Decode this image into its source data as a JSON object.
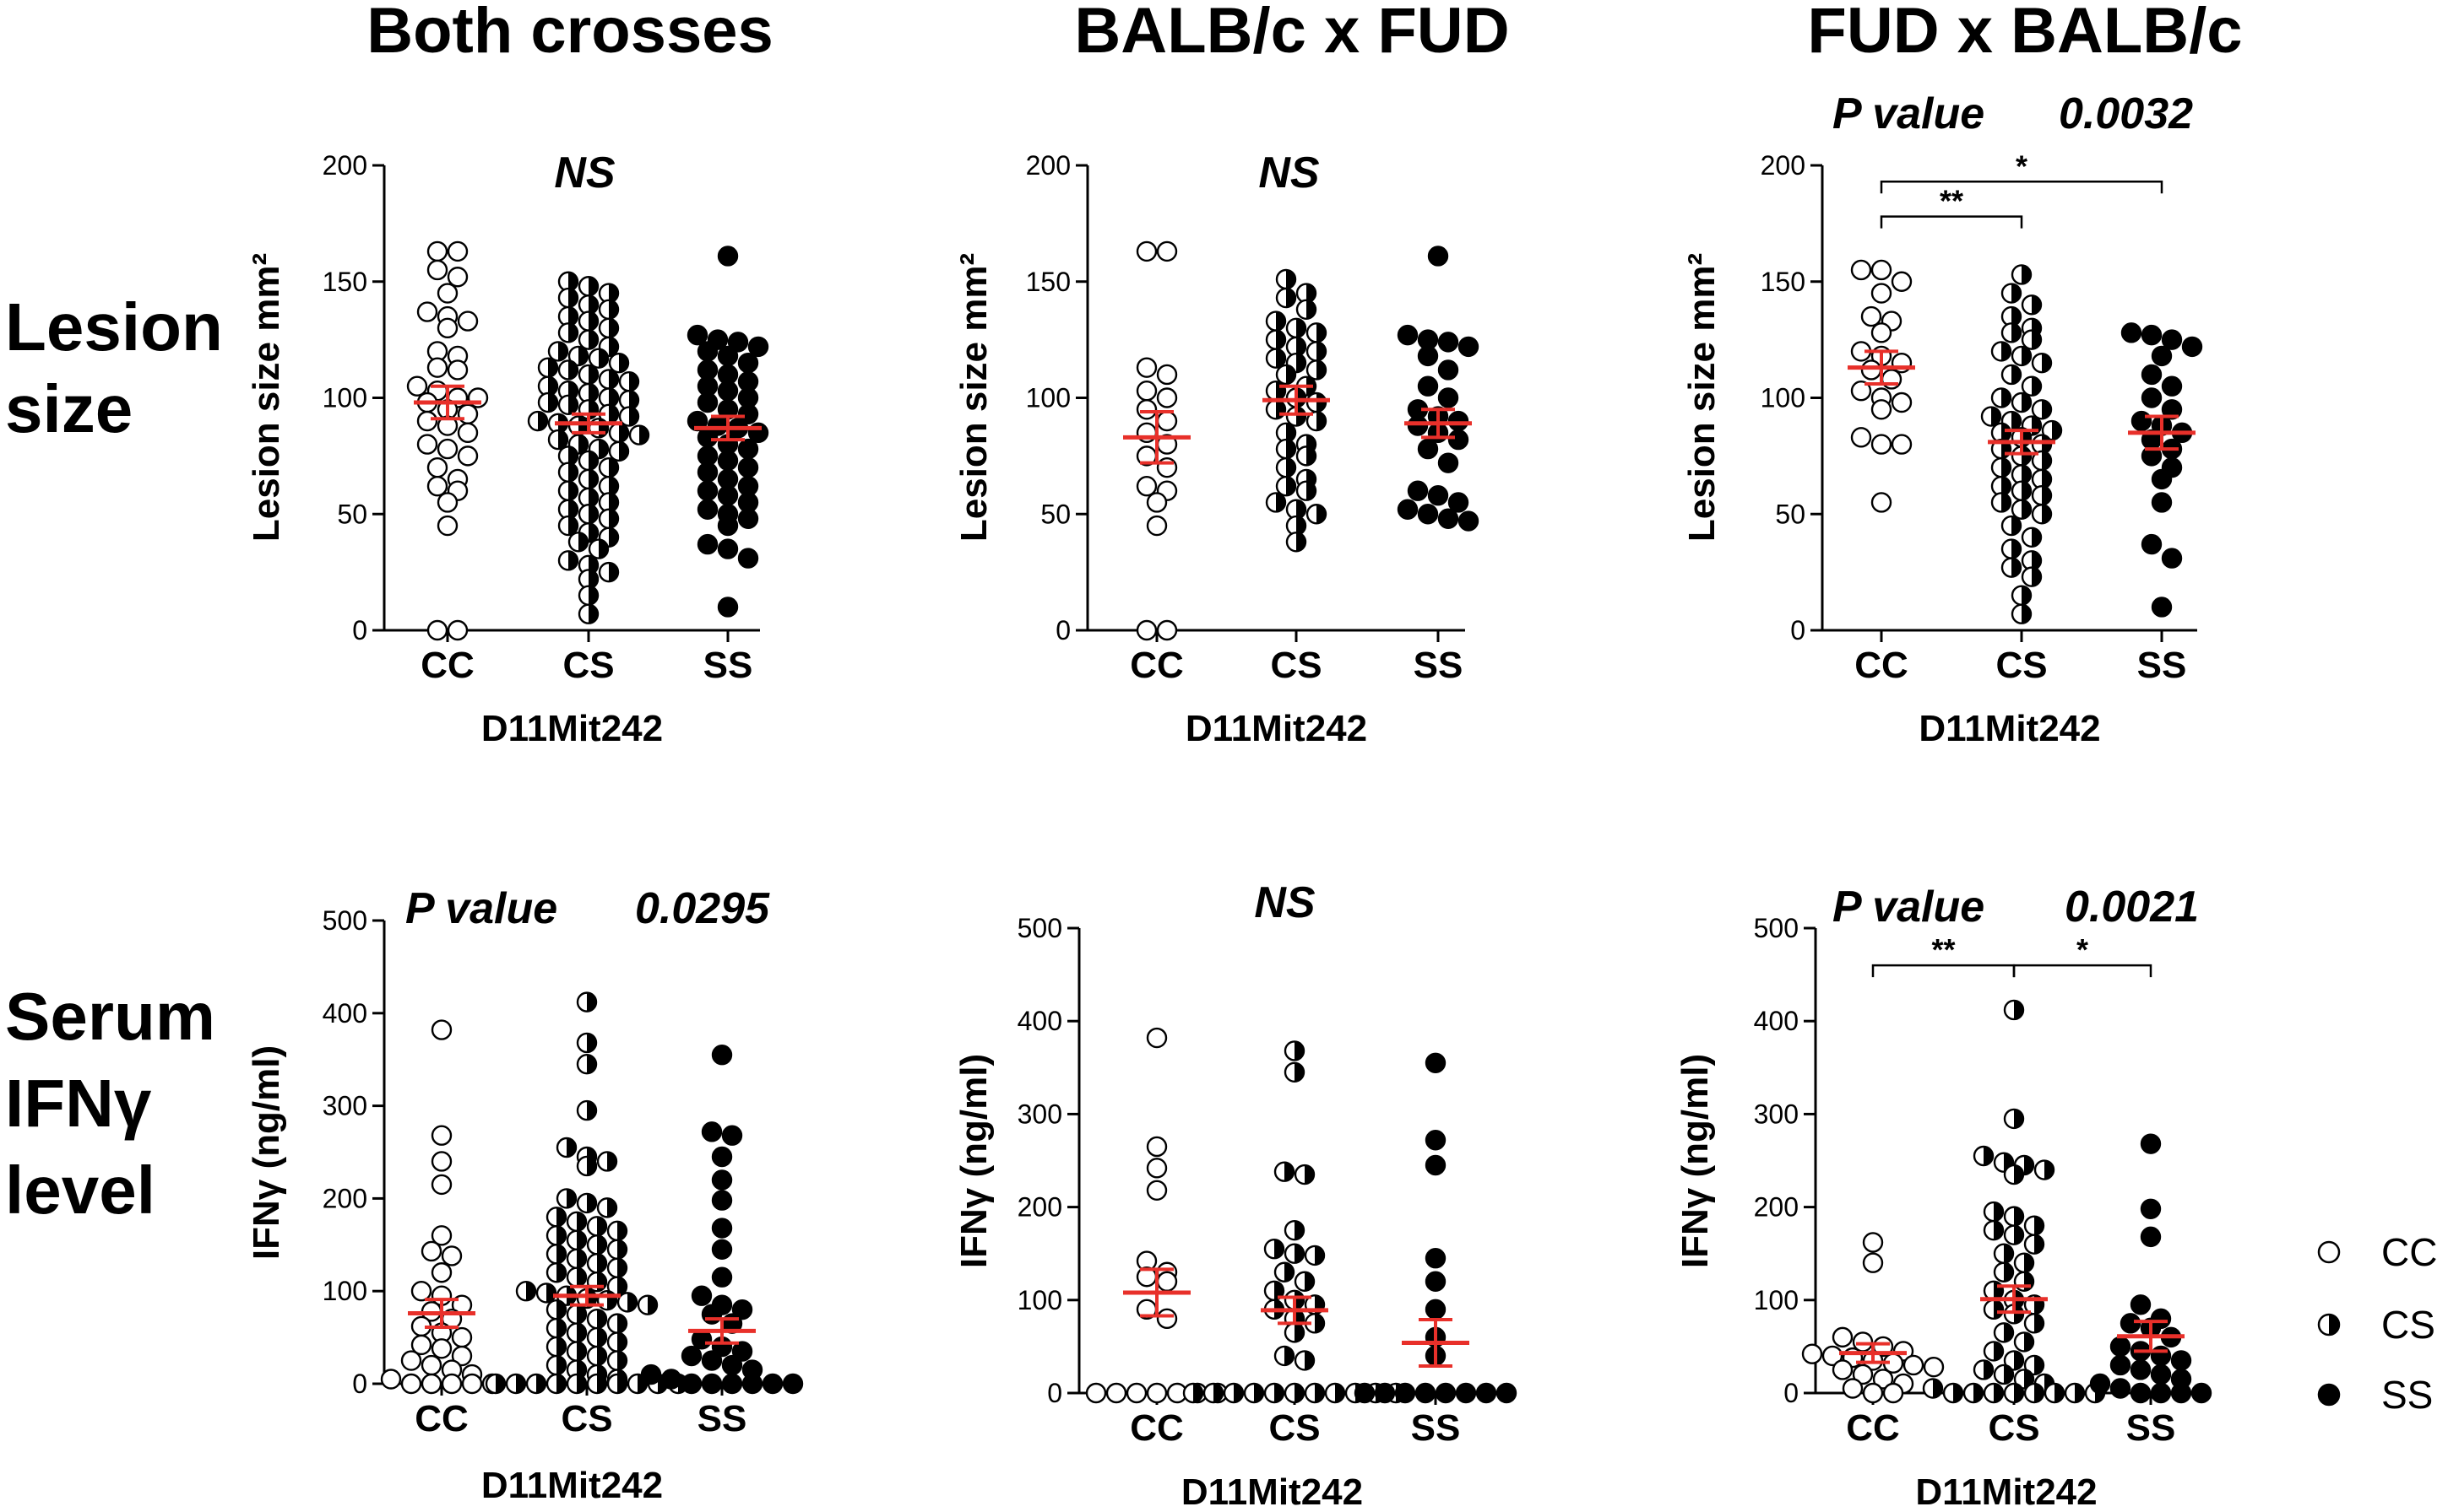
{
  "column_titles": [
    "Both crosses",
    "BALB/c x FUD",
    "FUD x BALB/c"
  ],
  "row_labels": [
    [
      "Lesion",
      "size"
    ],
    [
      "Serum",
      "IFNγ",
      "level"
    ]
  ],
  "colors": {
    "mean_sem": "#e8302a",
    "marker": "#000000"
  },
  "legend": {
    "entries": [
      {
        "label": "CC",
        "fill": "open"
      },
      {
        "label": "CS",
        "fill": "half"
      },
      {
        "label": "SS",
        "fill": "filled"
      }
    ]
  },
  "chart_data": [
    {
      "id": "lesion-both",
      "type": "scatter",
      "title": "NS",
      "p_value": "",
      "xlabel": "D11Mit242",
      "ylabel": "Lesion size mm²",
      "ylim": [
        0,
        200
      ],
      "yticks": [
        0,
        50,
        100,
        150,
        200
      ],
      "categories": [
        "CC",
        "CS",
        "SS"
      ],
      "significance": [],
      "series": [
        {
          "name": "CC",
          "marker": "open",
          "mean": 98,
          "sem": 7,
          "values": [
            163,
            163,
            152,
            155,
            145,
            137,
            135,
            133,
            130,
            120,
            118,
            113,
            112,
            105,
            103,
            100,
            100,
            98,
            95,
            93,
            90,
            88,
            85,
            80,
            78,
            75,
            70,
            65,
            62,
            60,
            55,
            45,
            0,
            0
          ]
        },
        {
          "name": "CS",
          "marker": "half",
          "mean": 89,
          "sem": 4,
          "values": [
            150,
            148,
            145,
            143,
            140,
            138,
            135,
            133,
            130,
            128,
            125,
            122,
            120,
            118,
            117,
            115,
            113,
            112,
            110,
            108,
            107,
            105,
            103,
            102,
            100,
            99,
            98,
            97,
            95,
            93,
            92,
            90,
            89,
            88,
            87,
            85,
            84,
            82,
            80,
            78,
            77,
            75,
            73,
            70,
            68,
            65,
            62,
            60,
            57,
            55,
            52,
            50,
            48,
            45,
            42,
            40,
            38,
            35,
            30,
            28,
            25,
            22,
            15,
            7
          ]
        },
        {
          "name": "SS",
          "marker": "filled",
          "mean": 87,
          "sem": 5,
          "values": [
            161,
            127,
            125,
            124,
            122,
            120,
            118,
            115,
            112,
            110,
            107,
            105,
            103,
            100,
            98,
            95,
            93,
            90,
            88,
            87,
            85,
            83,
            80,
            78,
            75,
            73,
            70,
            68,
            65,
            62,
            60,
            58,
            55,
            52,
            50,
            48,
            45,
            37,
            35,
            31,
            10
          ]
        }
      ]
    },
    {
      "id": "lesion-bxf",
      "type": "scatter",
      "title": "NS",
      "p_value": "",
      "xlabel": "D11Mit242",
      "ylabel": "Lesion size mm²",
      "ylim": [
        0,
        200
      ],
      "yticks": [
        0,
        50,
        100,
        150,
        200
      ],
      "categories": [
        "CC",
        "CS",
        "SS"
      ],
      "significance": [],
      "series": [
        {
          "name": "CC",
          "marker": "open",
          "mean": 83,
          "sem": 11,
          "values": [
            163,
            163,
            113,
            110,
            103,
            100,
            95,
            90,
            85,
            80,
            75,
            70,
            62,
            60,
            55,
            45,
            0,
            0
          ]
        },
        {
          "name": "CS",
          "marker": "half",
          "mean": 99,
          "sem": 6,
          "values": [
            151,
            145,
            143,
            138,
            133,
            130,
            128,
            125,
            122,
            120,
            117,
            115,
            112,
            110,
            105,
            103,
            100,
            98,
            95,
            92,
            90,
            85,
            80,
            78,
            75,
            70,
            65,
            62,
            60,
            55,
            52,
            50,
            45,
            38
          ]
        },
        {
          "name": "SS",
          "marker": "filled",
          "mean": 89,
          "sem": 6,
          "values": [
            161,
            127,
            125,
            124,
            122,
            118,
            112,
            105,
            100,
            95,
            92,
            90,
            88,
            85,
            82,
            78,
            72,
            60,
            58,
            55,
            52,
            50,
            48,
            47
          ]
        }
      ]
    },
    {
      "id": "lesion-fxb",
      "type": "scatter",
      "title": "",
      "p_value": "0.0032",
      "xlabel": "D11Mit242",
      "ylabel": "Lesion size mm²",
      "ylim": [
        0,
        200
      ],
      "yticks": [
        0,
        50,
        100,
        150,
        200
      ],
      "categories": [
        "CC",
        "CS",
        "SS"
      ],
      "significance": [
        {
          "from": 0,
          "to": 1,
          "label": "**",
          "y": 178
        },
        {
          "from": 0,
          "to": 2,
          "label": "*",
          "y": 193
        }
      ],
      "series": [
        {
          "name": "CC",
          "marker": "open",
          "mean": 113,
          "sem": 7,
          "values": [
            155,
            155,
            150,
            145,
            135,
            133,
            128,
            120,
            118,
            115,
            112,
            108,
            103,
            100,
            98,
            95,
            83,
            80,
            80,
            55
          ]
        },
        {
          "name": "CS",
          "marker": "half",
          "mean": 81,
          "sem": 5,
          "values": [
            153,
            145,
            140,
            135,
            130,
            128,
            125,
            120,
            118,
            115,
            110,
            105,
            100,
            98,
            95,
            92,
            90,
            88,
            86,
            85,
            83,
            80,
            78,
            75,
            73,
            70,
            67,
            65,
            62,
            60,
            58,
            55,
            52,
            50,
            45,
            40,
            35,
            30,
            27,
            23,
            15,
            7
          ]
        },
        {
          "name": "SS",
          "marker": "filled",
          "mean": 85,
          "sem": 7,
          "values": [
            128,
            127,
            125,
            122,
            118,
            110,
            105,
            100,
            95,
            90,
            88,
            85,
            82,
            78,
            75,
            70,
            65,
            55,
            37,
            31,
            10
          ]
        }
      ]
    },
    {
      "id": "ifn-both",
      "type": "scatter",
      "title": "",
      "p_value": "0.0295",
      "xlabel": "D11Mit242",
      "ylabel": "IFNγ (ng/ml)",
      "ylim": [
        0,
        500
      ],
      "yticks": [
        0,
        100,
        200,
        300,
        400,
        500
      ],
      "categories": [
        "CC",
        "CS",
        "SS"
      ],
      "significance": [],
      "series": [
        {
          "name": "CC",
          "marker": "open",
          "mean": 76,
          "sem": 15,
          "values": [
            382,
            268,
            240,
            215,
            160,
            143,
            138,
            120,
            100,
            95,
            85,
            78,
            70,
            62,
            55,
            50,
            42,
            38,
            30,
            25,
            20,
            15,
            10,
            5,
            0,
            0,
            0,
            0,
            0
          ]
        },
        {
          "name": "CS",
          "marker": "half",
          "mean": 95,
          "sem": 10,
          "values": [
            412,
            368,
            345,
            295,
            255,
            245,
            240,
            235,
            200,
            195,
            190,
            180,
            175,
            170,
            165,
            160,
            155,
            150,
            145,
            140,
            135,
            130,
            125,
            120,
            115,
            110,
            105,
            100,
            98,
            95,
            92,
            90,
            88,
            85,
            80,
            75,
            70,
            65,
            60,
            55,
            50,
            45,
            40,
            35,
            30,
            25,
            20,
            15,
            10,
            5,
            0,
            0,
            0,
            0,
            0,
            0,
            0,
            0,
            0,
            0
          ]
        },
        {
          "name": "SS",
          "marker": "filled",
          "mean": 57,
          "sem": 13,
          "values": [
            355,
            272,
            268,
            245,
            220,
            198,
            168,
            145,
            115,
            95,
            85,
            80,
            75,
            65,
            48,
            40,
            35,
            30,
            25,
            20,
            15,
            10,
            5,
            0,
            0,
            0,
            0,
            0,
            0
          ]
        }
      ]
    },
    {
      "id": "ifn-bxf",
      "type": "scatter",
      "title": "NS",
      "p_value": "",
      "xlabel": "D11Mit242",
      "ylabel": "IFNγ (ng/ml)",
      "ylim": [
        0,
        500
      ],
      "yticks": [
        0,
        100,
        200,
        300,
        400,
        500
      ],
      "categories": [
        "CC",
        "CS",
        "SS"
      ],
      "significance": [],
      "series": [
        {
          "name": "CC",
          "marker": "open",
          "mean": 108,
          "sem": 25,
          "values": [
            382,
            265,
            242,
            218,
            142,
            130,
            125,
            120,
            90,
            80,
            0,
            0,
            0,
            0,
            0,
            0,
            0
          ]
        },
        {
          "name": "CS",
          "marker": "half",
          "mean": 89,
          "sem": 14,
          "values": [
            368,
            345,
            238,
            235,
            175,
            155,
            150,
            148,
            130,
            120,
            110,
            100,
            95,
            90,
            80,
            75,
            65,
            40,
            35,
            0,
            0,
            0,
            0,
            0,
            0,
            0,
            0,
            0,
            0,
            0
          ]
        },
        {
          "name": "SS",
          "marker": "filled",
          "mean": 54,
          "sem": 25,
          "values": [
            355,
            272,
            245,
            145,
            120,
            90,
            60,
            40,
            0,
            0,
            0,
            0,
            0,
            0,
            0,
            0
          ]
        }
      ]
    },
    {
      "id": "ifn-fxb",
      "type": "scatter",
      "title": "",
      "p_value": "0.0021",
      "xlabel": "D11Mit242",
      "ylabel": "IFNγ (ng/ml)",
      "ylim": [
        0,
        500
      ],
      "yticks": [
        0,
        100,
        200,
        300,
        400,
        500
      ],
      "categories": [
        "CC",
        "CS",
        "SS"
      ],
      "significance": [
        {
          "from": 0,
          "to": 1,
          "label": "**",
          "y": 460
        },
        {
          "from": 1,
          "to": 2,
          "label": "*",
          "y": 460
        }
      ],
      "series": [
        {
          "name": "CC",
          "marker": "open",
          "mean": 43,
          "sem": 10,
          "values": [
            162,
            140,
            60,
            55,
            50,
            45,
            42,
            40,
            38,
            35,
            32,
            30,
            28,
            25,
            20,
            15,
            10,
            5,
            0,
            0
          ]
        },
        {
          "name": "CS",
          "marker": "half",
          "mean": 101,
          "sem": 14,
          "values": [
            412,
            295,
            255,
            248,
            245,
            240,
            235,
            195,
            190,
            180,
            175,
            170,
            160,
            150,
            140,
            130,
            120,
            110,
            100,
            95,
            90,
            85,
            75,
            65,
            55,
            45,
            35,
            30,
            25,
            20,
            15,
            10,
            5,
            0,
            0,
            0,
            0,
            0,
            0,
            0,
            0
          ]
        },
        {
          "name": "SS",
          "marker": "filled",
          "mean": 61,
          "sem": 16,
          "values": [
            268,
            198,
            168,
            95,
            80,
            75,
            70,
            60,
            50,
            45,
            40,
            35,
            30,
            25,
            20,
            15,
            10,
            5,
            0,
            0,
            0,
            0
          ]
        }
      ]
    }
  ]
}
